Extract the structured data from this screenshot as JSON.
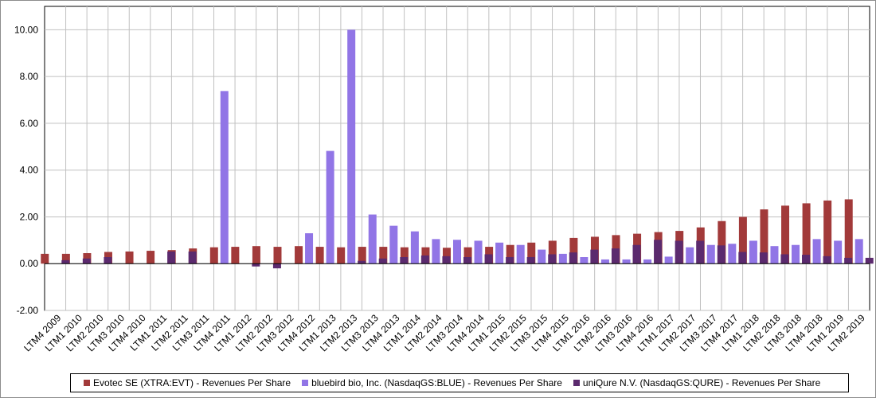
{
  "chart_data": {
    "type": "bar",
    "ylim": [
      -2,
      11
    ],
    "yticks": [
      "10.00",
      "8.00",
      "6.00",
      "4.00",
      "2.00",
      "0.00",
      "-2.00"
    ],
    "ytick_values": [
      10,
      8,
      6,
      4,
      2,
      0,
      -2
    ],
    "grid": "on",
    "legend_position": "bottom",
    "categories": [
      "LTM4 2009",
      "LTM1 2010",
      "LTM2 2010",
      "LTM3 2010",
      "LTM4 2010",
      "LTM1 2011",
      "LTM2 2011",
      "LTM3 2011",
      "LTM4 2011",
      "LTM1 2012",
      "LTM2 2012",
      "LTM3 2012",
      "LTM4 2012",
      "LTM1 2013",
      "LTM2 2013",
      "LTM3 2013",
      "LTM4 2013",
      "LTM1 2014",
      "LTM2 2014",
      "LTM3 2014",
      "LTM4 2014",
      "LTM1 2015",
      "LTM2 2015",
      "LTM3 2015",
      "LTM4 2015",
      "LTM1 2016",
      "LTM2 2016",
      "LTM3 2016",
      "LTM4 2016",
      "LTM1 2017",
      "LTM2 2017",
      "LTM3 2017",
      "LTM4 2017",
      "LTM1 2018",
      "LTM2 2018",
      "LTM3 2018",
      "LTM4 2018",
      "LTM1 2019",
      "LTM2 2019"
    ],
    "series": [
      {
        "name": "Evotec SE (XTRA:EVT) - Revenues Per Share",
        "color": "#a23a3a",
        "values": [
          0.42,
          0.42,
          0.45,
          0.5,
          0.52,
          0.55,
          0.58,
          0.65,
          0.7,
          0.72,
          0.75,
          0.72,
          0.75,
          0.72,
          0.7,
          0.72,
          0.72,
          0.7,
          0.7,
          0.68,
          0.7,
          0.72,
          0.8,
          0.9,
          0.98,
          1.1,
          1.15,
          1.22,
          1.28,
          1.35,
          1.4,
          1.55,
          1.82,
          2.0,
          2.32,
          2.48,
          2.58,
          2.7,
          2.75
        ]
      },
      {
        "name": "bluebird bio, Inc. (NasdaqGS:BLUE) - Revenues Per Share",
        "color": "#9175e6",
        "values": [
          null,
          null,
          null,
          null,
          null,
          null,
          null,
          null,
          7.38,
          null,
          null,
          null,
          1.3,
          4.82,
          10.0,
          2.1,
          1.62,
          1.38,
          1.05,
          1.02,
          0.98,
          0.9,
          0.8,
          0.6,
          0.42,
          0.28,
          0.18,
          0.18,
          0.18,
          0.3,
          0.7,
          0.8,
          0.85,
          0.98,
          0.75,
          0.8,
          1.05,
          0.98,
          1.05
        ]
      },
      {
        "name": "uniQure N.V. (NasdaqGS:QURE) - Revenues Per Share",
        "color": "#5b2a6e",
        "values": [
          0.15,
          0.22,
          0.28,
          null,
          null,
          0.52,
          0.52,
          null,
          null,
          -0.12,
          -0.2,
          null,
          null,
          null,
          0.12,
          0.22,
          0.28,
          0.35,
          0.32,
          0.28,
          0.4,
          0.28,
          0.28,
          0.4,
          0.48,
          0.6,
          0.65,
          0.8,
          1.02,
          0.98,
          0.98,
          0.78,
          0.5,
          0.48,
          0.4,
          0.38,
          0.32,
          0.25,
          0.25
        ]
      }
    ]
  }
}
